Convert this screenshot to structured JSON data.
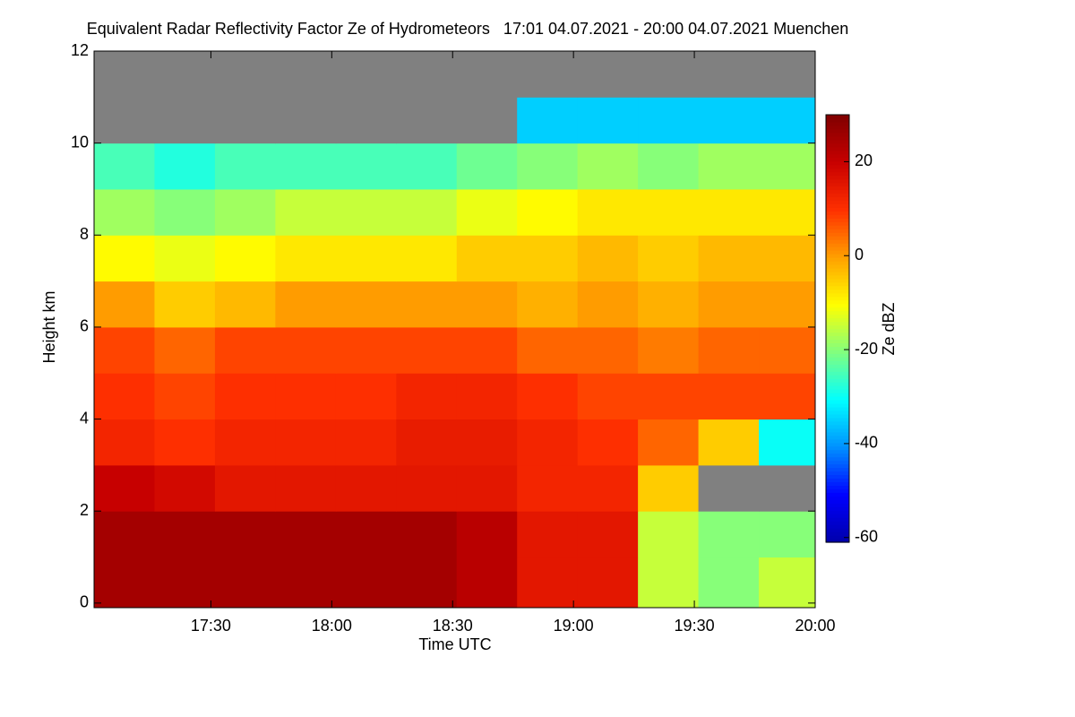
{
  "chart_data": {
    "type": "heatmap",
    "title": "Equivalent Radar Reflectivity Factor Ze of Hydrometeors   17:01 04.07.2021 - 20:00 04.07.2021 Muenchen",
    "x_label": "Time UTC",
    "y_label": "Height km",
    "colorbar_label": "Ze dBZ",
    "xlim": [
      1021,
      1200
    ],
    "xticks": [
      {
        "value": 1050,
        "label": "17:30"
      },
      {
        "value": 1080,
        "label": "18:00"
      },
      {
        "value": 1110,
        "label": "18:30"
      },
      {
        "value": 1140,
        "label": "19:00"
      },
      {
        "value": 1170,
        "label": "19:30"
      },
      {
        "value": 1200,
        "label": "20:00"
      }
    ],
    "ylim": [
      -0.1,
      12
    ],
    "yticks": [
      0,
      2,
      4,
      6,
      8,
      10,
      12
    ],
    "clim": [
      -61,
      30
    ],
    "cticks": [
      -60,
      -40,
      -20,
      0,
      20
    ],
    "colormap": [
      "#0000aa",
      "#0000ff",
      "#0090ff",
      "#00ffff",
      "#80ff80",
      "#ffff00",
      "#ffa000",
      "#ff3000",
      "#c80000",
      "#800000"
    ],
    "missing_color": "#808080",
    "xbins": [
      1021,
      1036,
      1051,
      1066,
      1081,
      1096,
      1111,
      1126,
      1141,
      1156,
      1171,
      1186,
      1200
    ],
    "ybins": [
      -0.1,
      1,
      2,
      3,
      4,
      5,
      6,
      7,
      8,
      9,
      10,
      11,
      12
    ],
    "z": [
      [
        25,
        25,
        25,
        25,
        25,
        25,
        22,
        15,
        15,
        -15,
        -20,
        -15
      ],
      [
        25,
        25,
        25,
        25,
        25,
        25,
        22,
        15,
        15,
        -15,
        -20,
        -20
      ],
      [
        20,
        18,
        15,
        15,
        15,
        15,
        15,
        12,
        12,
        -5,
        null,
        null
      ],
      [
        12,
        10,
        12,
        12,
        12,
        14,
        14,
        12,
        10,
        5,
        -5,
        -30
      ],
      [
        10,
        8,
        10,
        10,
        10,
        12,
        12,
        10,
        8,
        8,
        8,
        8
      ],
      [
        8,
        5,
        8,
        8,
        8,
        8,
        8,
        5,
        5,
        3,
        5,
        5
      ],
      [
        0,
        -5,
        -3,
        0,
        0,
        0,
        0,
        -2,
        0,
        -2,
        0,
        0
      ],
      [
        -10,
        -12,
        -10,
        -8,
        -8,
        -8,
        -5,
        -5,
        -3,
        -5,
        -3,
        -3
      ],
      [
        -18,
        -20,
        -18,
        -15,
        -15,
        -15,
        -12,
        -10,
        -8,
        -8,
        -8,
        -8
      ],
      [
        -25,
        -28,
        -25,
        -25,
        -25,
        -25,
        -22,
        -20,
        -18,
        -20,
        -18,
        -18
      ],
      [
        null,
        null,
        null,
        null,
        null,
        null,
        null,
        -35,
        -35,
        -35,
        -35,
        -35
      ],
      [
        null,
        null,
        null,
        null,
        null,
        null,
        null,
        null,
        null,
        null,
        null,
        null
      ]
    ]
  }
}
